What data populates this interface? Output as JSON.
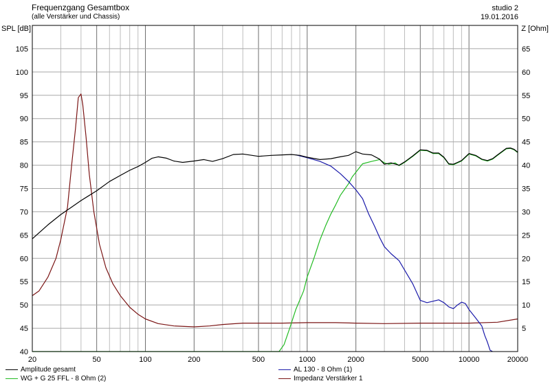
{
  "header": {
    "title": "Frequenzgang Gesamtbox",
    "subtitle": "(alle Verstärker und Chassis)",
    "studio": "studio 2",
    "date": "19.01.2016"
  },
  "chart_data": {
    "type": "line",
    "xscale": "log",
    "xlim": [
      20,
      20000
    ],
    "ylim": [
      40,
      110
    ],
    "y2lim": [
      0,
      70
    ],
    "ylabel": "SPL [dB]",
    "y2label": "Z [Ohm]",
    "grid": true,
    "xticks": [
      20,
      50,
      100,
      200,
      500,
      1000,
      2000,
      5000,
      10000,
      20000
    ],
    "xtick_labels": [
      "20",
      "50",
      "100",
      "200",
      "500",
      "1000",
      "2000",
      "5000",
      "10000",
      "20000"
    ],
    "yticks": [
      40,
      45,
      50,
      55,
      60,
      65,
      70,
      75,
      80,
      85,
      90,
      95,
      100,
      105
    ],
    "ytick_labels": [
      "40",
      "45",
      "50",
      "55",
      "60",
      "65",
      "70",
      "75",
      "80",
      "85",
      "90",
      "95",
      "100",
      "105"
    ],
    "y2ticks": [
      5,
      10,
      15,
      20,
      25,
      30,
      35,
      40,
      45,
      50,
      55,
      60,
      65
    ],
    "y2tick_labels": [
      "5",
      "10",
      "15",
      "20",
      "25",
      "30",
      "35",
      "40",
      "45",
      "50",
      "55",
      "60",
      "65"
    ],
    "legend": "bottom",
    "series": [
      {
        "name": "Amplitude gesamt",
        "color": "#000000",
        "axis": "left",
        "points": [
          [
            20,
            64.2
          ],
          [
            25,
            67.2
          ],
          [
            30,
            69.4
          ],
          [
            35,
            71
          ],
          [
            40,
            72.4
          ],
          [
            50,
            74.5
          ],
          [
            60,
            76.5
          ],
          [
            70,
            77.8
          ],
          [
            80,
            78.9
          ],
          [
            90,
            79.7
          ],
          [
            100,
            80.6
          ],
          [
            110,
            81.5
          ],
          [
            120,
            81.8
          ],
          [
            135,
            81.5
          ],
          [
            150,
            80.9
          ],
          [
            170,
            80.6
          ],
          [
            200,
            80.9
          ],
          [
            230,
            81.2
          ],
          [
            260,
            80.8
          ],
          [
            300,
            81.4
          ],
          [
            350,
            82.3
          ],
          [
            400,
            82.4
          ],
          [
            500,
            81.9
          ],
          [
            600,
            82.1
          ],
          [
            700,
            82.2
          ],
          [
            800,
            82.3
          ],
          [
            900,
            82.1
          ],
          [
            1000,
            81.7
          ],
          [
            1200,
            81.2
          ],
          [
            1400,
            81.4
          ],
          [
            1600,
            81.8
          ],
          [
            1800,
            82.1
          ],
          [
            2000,
            82.9
          ],
          [
            2200,
            82.4
          ],
          [
            2500,
            82.2
          ],
          [
            2800,
            81.3
          ],
          [
            3000,
            80.2
          ],
          [
            3300,
            80.5
          ],
          [
            3700,
            80
          ],
          [
            4000,
            80.7
          ],
          [
            4500,
            82
          ],
          [
            5000,
            83.3
          ],
          [
            5500,
            83.2
          ],
          [
            6000,
            82.6
          ],
          [
            6500,
            82.6
          ],
          [
            7000,
            81.7
          ],
          [
            7500,
            80.3
          ],
          [
            8000,
            80.2
          ],
          [
            8500,
            80.6
          ],
          [
            9000,
            81
          ],
          [
            10000,
            82.5
          ],
          [
            11000,
            82.1
          ],
          [
            12000,
            81.3
          ],
          [
            13000,
            81
          ],
          [
            14000,
            81.4
          ],
          [
            15000,
            82.2
          ],
          [
            17000,
            83.6
          ],
          [
            18000,
            83.7
          ],
          [
            19000,
            83.4
          ],
          [
            20000,
            82.8
          ]
        ]
      },
      {
        "name": "WG + G 25 FFL - 8 Ohm (2)",
        "color": "#22bb22",
        "axis": "left",
        "points": [
          [
            20,
            40
          ],
          [
            670,
            40
          ],
          [
            720,
            41.5
          ],
          [
            780,
            45
          ],
          [
            850,
            49
          ],
          [
            950,
            53
          ],
          [
            1000,
            56
          ],
          [
            1100,
            60
          ],
          [
            1200,
            64
          ],
          [
            1300,
            67
          ],
          [
            1400,
            69.5
          ],
          [
            1500,
            71.5
          ],
          [
            1600,
            73.5
          ],
          [
            1700,
            74.8
          ],
          [
            1800,
            76
          ],
          [
            1900,
            77.5
          ],
          [
            2000,
            78.5
          ],
          [
            2200,
            80.3
          ],
          [
            2500,
            80.8
          ],
          [
            2800,
            81.2
          ],
          [
            3000,
            80.5
          ],
          [
            3200,
            80.2
          ],
          [
            3500,
            80.5
          ],
          [
            3700,
            79.9
          ],
          [
            4000,
            80.6
          ],
          [
            4500,
            81.9
          ],
          [
            5000,
            83.2
          ],
          [
            5500,
            83.1
          ],
          [
            6000,
            82.5
          ],
          [
            6500,
            82.5
          ],
          [
            7000,
            81.6
          ],
          [
            7500,
            80.2
          ],
          [
            8000,
            80.1
          ],
          [
            8500,
            80.5
          ],
          [
            9000,
            80.9
          ],
          [
            10000,
            82.4
          ],
          [
            11000,
            82
          ],
          [
            12000,
            81.2
          ],
          [
            13000,
            80.9
          ],
          [
            14000,
            81.3
          ],
          [
            15000,
            82.1
          ],
          [
            17000,
            83.5
          ],
          [
            18000,
            83.6
          ],
          [
            19000,
            83.3
          ],
          [
            20000,
            82.7
          ]
        ]
      },
      {
        "name": "AL 130 - 8 Ohm (1)",
        "color": "#1a1aaa",
        "axis": "left",
        "points": [
          [
            850,
            82.2
          ],
          [
            1000,
            81.6
          ],
          [
            1200,
            80.8
          ],
          [
            1400,
            79.8
          ],
          [
            1600,
            78.2
          ],
          [
            1800,
            76.5
          ],
          [
            2000,
            74.7
          ],
          [
            2200,
            72.8
          ],
          [
            2400,
            69.5
          ],
          [
            2600,
            67
          ],
          [
            2800,
            64.5
          ],
          [
            3000,
            62.5
          ],
          [
            3300,
            61
          ],
          [
            3700,
            59.5
          ],
          [
            4000,
            57.5
          ],
          [
            4500,
            54.5
          ],
          [
            5000,
            51
          ],
          [
            5500,
            50.5
          ],
          [
            6000,
            50.8
          ],
          [
            6500,
            51.1
          ],
          [
            7000,
            50.5
          ],
          [
            7500,
            49.6
          ],
          [
            8000,
            49.2
          ],
          [
            8500,
            50
          ],
          [
            9000,
            50.6
          ],
          [
            9500,
            50.3
          ],
          [
            10000,
            49
          ],
          [
            11000,
            47.2
          ],
          [
            12000,
            45.5
          ],
          [
            12500,
            43.5
          ],
          [
            13000,
            42
          ],
          [
            13500,
            40.3
          ],
          [
            14000,
            40
          ]
        ]
      },
      {
        "name": "Impedanz Verstärker 1",
        "color": "#7a1414",
        "axis": "right",
        "points": [
          [
            20,
            12
          ],
          [
            22,
            13
          ],
          [
            25,
            16
          ],
          [
            28,
            20
          ],
          [
            30,
            24
          ],
          [
            33,
            31
          ],
          [
            35,
            40
          ],
          [
            37,
            48
          ],
          [
            38.5,
            54.5
          ],
          [
            40,
            55.3
          ],
          [
            41,
            53
          ],
          [
            43,
            46
          ],
          [
            45,
            38
          ],
          [
            48,
            30
          ],
          [
            52,
            23
          ],
          [
            57,
            18
          ],
          [
            63,
            14.5
          ],
          [
            70,
            12
          ],
          [
            80,
            9.5
          ],
          [
            90,
            8
          ],
          [
            100,
            7
          ],
          [
            120,
            6
          ],
          [
            150,
            5.5
          ],
          [
            200,
            5.3
          ],
          [
            250,
            5.5
          ],
          [
            300,
            5.8
          ],
          [
            400,
            6.1
          ],
          [
            500,
            6.1
          ],
          [
            700,
            6.1
          ],
          [
            1000,
            6.2
          ],
          [
            1500,
            6.2
          ],
          [
            2000,
            6.1
          ],
          [
            3000,
            6
          ],
          [
            5000,
            6.1
          ],
          [
            10000,
            6.1
          ],
          [
            15000,
            6.3
          ],
          [
            20000,
            7
          ]
        ]
      }
    ]
  }
}
